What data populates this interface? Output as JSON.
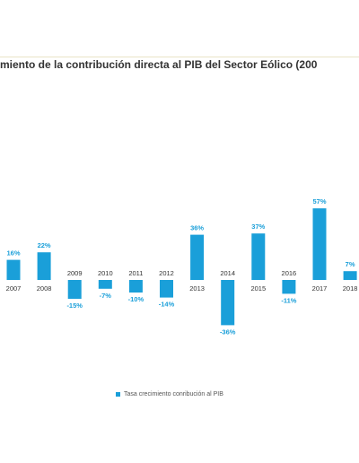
{
  "chart_data": {
    "type": "bar",
    "title": "miento de la contribución directa al PIB del Sector Eólico (200",
    "categories": [
      "2007",
      "2008",
      "2009",
      "2010",
      "2011",
      "2012",
      "2013",
      "2014",
      "2015",
      "2016",
      "2017",
      "2018"
    ],
    "values": [
      16,
      22,
      -15,
      -7,
      -10,
      -14,
      36,
      -36,
      37,
      -11,
      57,
      7
    ],
    "value_labels": [
      "16%",
      "22%",
      "-15%",
      "-7%",
      "-10%",
      "-14%",
      "36%",
      "-36%",
      "37%",
      "-11%",
      "57%",
      "7%"
    ],
    "series": [
      {
        "name": "Tasa crecimiento conribución al PIB"
      }
    ],
    "xlabel": "",
    "ylabel": "",
    "ylim": [
      -40,
      60
    ],
    "grid": false,
    "legend": "bottom",
    "colors": {
      "bar": "#1a9fd9",
      "label": "#1a9fd9",
      "category": "#333333"
    }
  }
}
